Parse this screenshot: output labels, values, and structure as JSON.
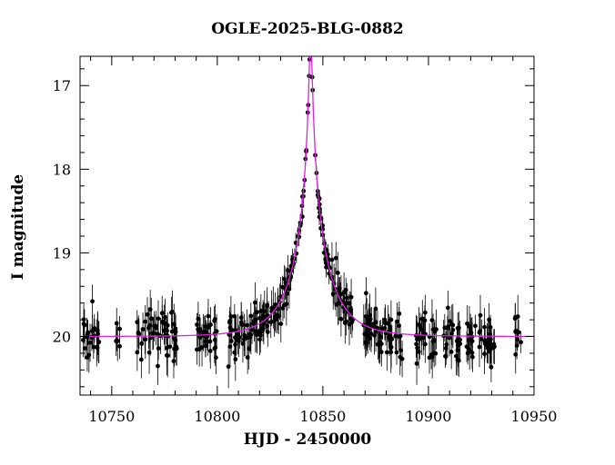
{
  "chart_data": {
    "type": "scatter",
    "title": "OGLE-2025-BLG-0882",
    "xlabel": "HJD - 2450000",
    "ylabel": "I magnitude",
    "xlim": [
      10735,
      10950
    ],
    "ylim": [
      20.7,
      16.65
    ],
    "y_inverted": true,
    "x_ticks": [
      10750,
      10800,
      10850,
      10900,
      10950
    ],
    "y_ticks": [
      17,
      18,
      19,
      20
    ],
    "grid": false,
    "colors": {
      "points": "#000000",
      "model": "#e020e0"
    },
    "model": {
      "type": "microlensing",
      "t0": 10844.2,
      "u0": 0.0368,
      "tE": 17.0,
      "baseline_mag": 20.0
    },
    "observation_windows": [
      [
        10736,
        10744
      ],
      [
        10752,
        10754
      ],
      [
        10762,
        10781
      ],
      [
        10789,
        10800
      ],
      [
        10805,
        10819
      ],
      [
        10820,
        10841
      ],
      [
        10841,
        10866
      ],
      [
        10869,
        10888
      ],
      [
        10894,
        10904
      ],
      [
        10907,
        10915
      ],
      [
        10918,
        10923
      ],
      [
        10924,
        10932
      ],
      [
        10941,
        10944
      ]
    ]
  }
}
